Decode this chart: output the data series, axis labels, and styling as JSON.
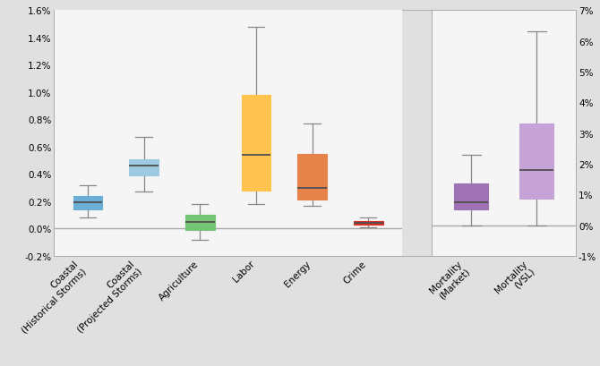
{
  "left_boxes": [
    {
      "label": "Coastal\n(Historical Storms)",
      "color": "#6baed6",
      "whisker_low": 0.0008,
      "q1": 0.0014,
      "median": 0.0019,
      "q3": 0.0024,
      "whisker_high": 0.0032
    },
    {
      "label": "Coastal\n(Projected Storms)",
      "color": "#9ecae1",
      "whisker_low": 0.0027,
      "q1": 0.0039,
      "median": 0.0046,
      "q3": 0.0051,
      "whisker_high": 0.0067
    },
    {
      "label": "Agriculture",
      "color": "#74c476",
      "whisker_low": -0.0008,
      "q1": -0.0001,
      "median": 0.0005,
      "q3": 0.001,
      "whisker_high": 0.0018
    },
    {
      "label": "Labor",
      "color": "#fec44f",
      "whisker_low": 0.0018,
      "q1": 0.0028,
      "median": 0.0054,
      "q3": 0.0098,
      "whisker_high": 0.0148
    },
    {
      "label": "Energy",
      "color": "#e6834a",
      "whisker_low": 0.0017,
      "q1": 0.0021,
      "median": 0.003,
      "q3": 0.0055,
      "whisker_high": 0.0077
    },
    {
      "label": "Crime",
      "color": "#d73027",
      "whisker_low": 0.0001,
      "q1": 0.0003,
      "median": 0.00045,
      "q3": 0.00055,
      "whisker_high": 0.0008
    }
  ],
  "right_boxes": [
    {
      "label": "Mortality\n(Market)",
      "color": "#9e72b5",
      "whisker_low": 0.0,
      "q1": 0.005,
      "median": 0.0075,
      "q3": 0.0135,
      "whisker_high": 0.023
    },
    {
      "label": "Mortality\n(VSL)",
      "color": "#c5a3d6",
      "whisker_low": 0.0,
      "q1": 0.0085,
      "median": 0.018,
      "q3": 0.033,
      "whisker_high": 0.063
    }
  ],
  "left_ylim": [
    -0.002,
    0.016
  ],
  "left_yticks": [
    -0.002,
    0.0,
    0.002,
    0.004,
    0.006,
    0.008,
    0.01,
    0.012,
    0.014,
    0.016
  ],
  "left_yticklabels": [
    "-0.2%",
    "0.0%",
    "0.2%",
    "0.4%",
    "0.6%",
    "0.8%",
    "1.0%",
    "1.2%",
    "1.4%",
    "1.6%"
  ],
  "right_ylim": [
    -0.01,
    0.07
  ],
  "right_yticks": [
    -0.01,
    0.0,
    0.01,
    0.02,
    0.03,
    0.04,
    0.05,
    0.06,
    0.07
  ],
  "right_yticklabels": [
    "-1%",
    "0%",
    "1%",
    "2%",
    "3%",
    "4%",
    "5%",
    "6%",
    "7%"
  ],
  "zero_line_color": "#aaaaaa",
  "bg_color": "#e0e0e0",
  "panel_bg": "#f5f5f5",
  "border_color": "#aaaaaa",
  "connector_color": "#b0b0b0",
  "box_width": 0.52
}
